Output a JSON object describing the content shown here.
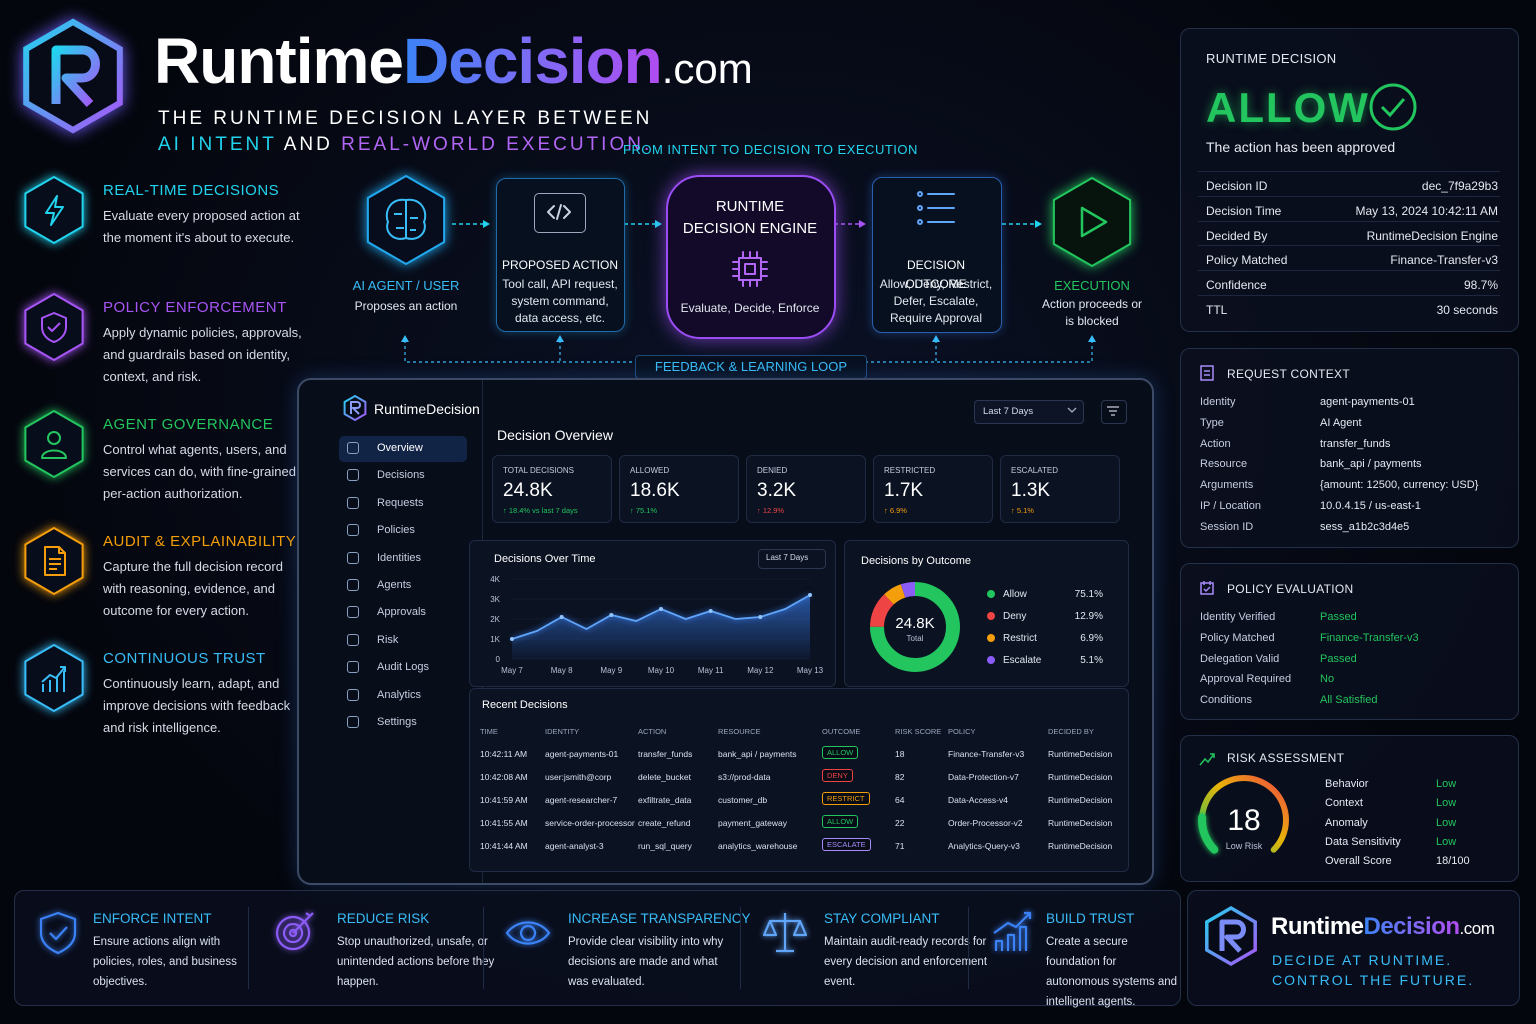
{
  "header": {
    "brand_main": "Runtime",
    "brand_accent": "Decision",
    "brand_tld": ".com",
    "tagline_1": "THE RUNTIME DECISION LAYER BETWEEN",
    "tagline_2a": "AI INTENT",
    "tagline_2b": "AND",
    "tagline_2c": "REAL-WORLD EXECUTION."
  },
  "features": [
    {
      "title": "REAL-TIME DECISIONS",
      "text": "Evaluate every proposed action at the moment it's about to execute."
    },
    {
      "title": "POLICY ENFORCEMENT",
      "text": "Apply dynamic policies, approvals, and guardrails based on identity, context, and risk."
    },
    {
      "title": "AGENT GOVERNANCE",
      "text": "Control what agents, users, and services can do, with fine-grained per-action authorization."
    },
    {
      "title": "AUDIT & EXPLAINABILITY",
      "text": "Capture the full decision record with reasoning, evidence, and outcome for every action."
    },
    {
      "title": "CONTINUOUS TRUST",
      "text": "Continuously learn, adapt, and improve decisions with feedback and risk intelligence."
    }
  ],
  "flow": {
    "title": "FROM INTENT TO DECISION TO EXECUTION",
    "loop": "FEEDBACK & LEARNING LOOP",
    "steps": [
      {
        "title": "AI AGENT / USER",
        "text": "Proposes an action"
      },
      {
        "title": "PROPOSED ACTION",
        "text": "Tool call, API request, system command, data access, etc."
      },
      {
        "title": "RUNTIME DECISION ENGINE",
        "text": "Evaluate, Decide, Enforce"
      },
      {
        "title": "DECISION OUTCOME",
        "text": "Allow, Deny, Restrict, Defer, Escalate, Require Approval"
      },
      {
        "title": "EXECUTION",
        "text": "Action proceeds or is blocked"
      }
    ]
  },
  "dashboard": {
    "brand": "RuntimeDecision",
    "period": "Last 7 Days",
    "title": "Decision Overview",
    "nav": [
      "Overview",
      "Decisions",
      "Requests",
      "Policies",
      "Identities",
      "Agents",
      "Approvals",
      "Risk",
      "Audit Logs",
      "Analytics",
      "Settings"
    ],
    "stats": [
      {
        "label": "TOTAL DECISIONS",
        "value": "24.8K",
        "delta": "↑ 18.4% vs last 7 days"
      },
      {
        "label": "ALLOWED",
        "value": "18.6K",
        "delta": "↑ 75.1%"
      },
      {
        "label": "DENIED",
        "value": "3.2K",
        "delta": "↑ 12.9%"
      },
      {
        "label": "RESTRICTED",
        "value": "1.7K",
        "delta": "↑ 6.9%"
      },
      {
        "label": "ESCALATED",
        "value": "1.3K",
        "delta": "↑ 5.1%"
      }
    ],
    "table": {
      "title": "Recent Decisions",
      "columns": [
        "TIME",
        "IDENTITY",
        "ACTION",
        "RESOURCE",
        "OUTCOME",
        "RISK SCORE",
        "POLICY",
        "DECIDED BY"
      ],
      "rows": [
        [
          "10:42:11 AM",
          "agent-payments-01",
          "transfer_funds",
          "bank_api / payments",
          "ALLOW",
          18,
          "Finance-Transfer-v3",
          "RuntimeDecision"
        ],
        [
          "10:42:08 AM",
          "user:jsmith@corp",
          "delete_bucket",
          "s3://prod-data",
          "DENY",
          82,
          "Data-Protection-v7",
          "RuntimeDecision"
        ],
        [
          "10:41:59 AM",
          "agent-researcher-7",
          "exfiltrate_data",
          "customer_db",
          "RESTRICT",
          64,
          "Data-Access-v4",
          "RuntimeDecision"
        ],
        [
          "10:41:55 AM",
          "service-order-processor",
          "create_refund",
          "payment_gateway",
          "ALLOW",
          22,
          "Order-Processor-v2",
          "RuntimeDecision"
        ],
        [
          "10:41:44 AM",
          "agent-analyst-3",
          "run_sql_query",
          "analytics_warehouse",
          "ESCALATE",
          71,
          "Analytics-Query-v3",
          "RuntimeDecision"
        ]
      ]
    }
  },
  "chart_data": [
    {
      "type": "line",
      "title": "Decisions Over Time",
      "filter": "Last 7 Days",
      "categories": [
        "May 7",
        null,
        "May 8",
        null,
        "May 9",
        null,
        "May 10",
        null,
        "May 11",
        null,
        "May 12",
        null,
        "May 13"
      ],
      "values": [
        1000,
        1400,
        2100,
        1500,
        2200,
        1900,
        2500,
        2000,
        2400,
        2000,
        2100,
        2500,
        3200
      ],
      "ylim": [
        0,
        4000
      ],
      "yticks": [
        0,
        {
          "value": 1000,
          "label": "1K"
        },
        {
          "value": 2000,
          "label": "2K"
        },
        {
          "value": 3000,
          "label": "3K"
        },
        {
          "value": 4000,
          "label": "4K"
        }
      ],
      "color": "#3b82f6"
    },
    {
      "type": "pie",
      "title": "Decisions by Outcome",
      "center_value": "24.8K",
      "center_label": "Total",
      "categories": [
        "Allow",
        "Deny",
        "Restrict",
        "Escalate"
      ],
      "values": [
        75.1,
        12.9,
        6.9,
        5.1
      ],
      "value_labels": [
        "75.1%",
        "12.9%",
        "6.9%",
        "5.1%"
      ],
      "colors": [
        "#22c55e",
        "#ef4444",
        "#f59e0b",
        "#8b5cf6"
      ]
    },
    {
      "type": "gauge",
      "title": "RISK ASSESSMENT",
      "value": 18,
      "ylim": [
        0,
        100
      ],
      "label": "Low Risk",
      "color": "#22c55e"
    }
  ],
  "decision": {
    "label": "RUNTIME DECISION",
    "verdict": "ALLOW",
    "subtitle": "The action has been approved",
    "rows": [
      {
        "label": "Decision ID",
        "value": "dec_7f9a29b3"
      },
      {
        "label": "Decision Time",
        "value": "May 13, 2024 10:42:11 AM"
      },
      {
        "label": "Decided By",
        "value": "RuntimeDecision Engine"
      },
      {
        "label": "Policy Matched",
        "value": "Finance-Transfer-v3"
      },
      {
        "label": "Confidence",
        "value": "98.7%"
      },
      {
        "label": "TTL",
        "value": "30 seconds"
      }
    ]
  },
  "request_context": {
    "title": "REQUEST CONTEXT",
    "rows": [
      {
        "label": "Identity",
        "value": "agent-payments-01"
      },
      {
        "label": "Type",
        "value": "AI Agent"
      },
      {
        "label": "Action",
        "value": "transfer_funds"
      },
      {
        "label": "Resource",
        "value": "bank_api / payments"
      },
      {
        "label": "Arguments",
        "value": "{amount: 12500, currency: USD}"
      },
      {
        "label": "IP / Location",
        "value": "10.0.4.15 / us-east-1"
      },
      {
        "label": "Session ID",
        "value": "sess_a1b2c3d4e5"
      }
    ]
  },
  "policy_evaluation": {
    "title": "POLICY EVALUATION",
    "rows": [
      {
        "label": "Identity Verified",
        "value": "Passed"
      },
      {
        "label": "Policy Matched",
        "value": "Finance-Transfer-v3"
      },
      {
        "label": "Delegation Valid",
        "value": "Passed"
      },
      {
        "label": "Approval Required",
        "value": "No"
      },
      {
        "label": "Conditions",
        "value": "All Satisfied"
      }
    ]
  },
  "risk_assessment": {
    "rows": [
      {
        "label": "Behavior",
        "value": "Low"
      },
      {
        "label": "Context",
        "value": "Low"
      },
      {
        "label": "Anomaly",
        "value": "Low"
      },
      {
        "label": "Data Sensitivity",
        "value": "Low"
      },
      {
        "label": "Overall Score",
        "value": "18/100"
      }
    ]
  },
  "benefits": [
    {
      "title": "ENFORCE INTENT",
      "text": "Ensure actions align with policies, roles, and business objectives."
    },
    {
      "title": "REDUCE RISK",
      "text": "Stop unauthorized, unsafe, or unintended actions before they happen."
    },
    {
      "title": "INCREASE TRANSPARENCY",
      "text": "Provide clear visibility into why decisions are made and what was evaluated."
    },
    {
      "title": "STAY COMPLIANT",
      "text": "Maintain audit-ready records for every decision and enforcement event."
    },
    {
      "title": "BUILD TRUST",
      "text": "Create a secure foundation for autonomous systems and intelligent agents."
    }
  ],
  "footer_brand": {
    "main": "Runtime",
    "accent": "Decision",
    "tld": ".com",
    "line_1": "DECIDE AT RUNTIME.",
    "line_2": "CONTROL THE FUTURE."
  }
}
